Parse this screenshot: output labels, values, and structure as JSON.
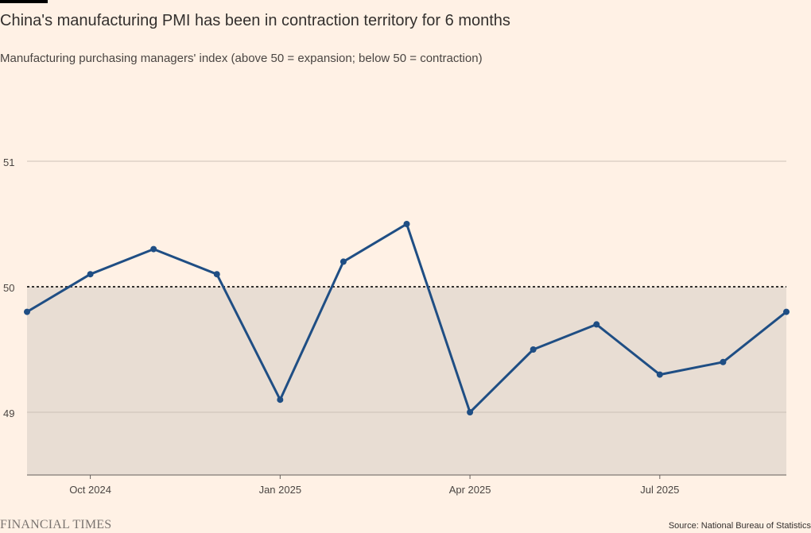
{
  "colors": {
    "background": "#fff1e5",
    "line": "#1f4e84",
    "shade": "#e8ddd3",
    "gridline": "#ccc1b7",
    "reference": "#33302e"
  },
  "chart_data": {
    "type": "line",
    "title": "China's manufacturing PMI has been in contraction territory for 6 months",
    "subtitle": "Manufacturing purchasing managers' index (above 50 = expansion; below 50 = contraction)",
    "x": [
      "2024-09",
      "2024-10",
      "2024-11",
      "2024-12",
      "2025-01",
      "2025-02",
      "2025-03",
      "2025-04",
      "2025-05",
      "2025-06",
      "2025-07",
      "2025-08",
      "2025-09"
    ],
    "series": [
      {
        "values": [
          49.8,
          50.1,
          50.3,
          50.1,
          49.1,
          50.2,
          50.5,
          49.0,
          49.5,
          49.7,
          49.3,
          49.4,
          49.8
        ]
      }
    ],
    "ylim": [
      48.5,
      51
    ],
    "yticks": [
      49,
      50,
      51
    ],
    "xticks": [
      {
        "x": "2024-10",
        "label": "Oct 2024"
      },
      {
        "x": "2025-01",
        "label": "Jan 2025"
      },
      {
        "x": "2025-04",
        "label": "Apr 2025"
      },
      {
        "x": "2025-07",
        "label": "Jul 2025"
      }
    ],
    "reference_line": 50,
    "shaded_below": 50,
    "markers": true,
    "grid": true,
    "source": "Source: National Bureau of Statistics"
  },
  "footer": {
    "brand": "FINANCIAL TIMES",
    "source": "Source: National Bureau of Statistics"
  }
}
